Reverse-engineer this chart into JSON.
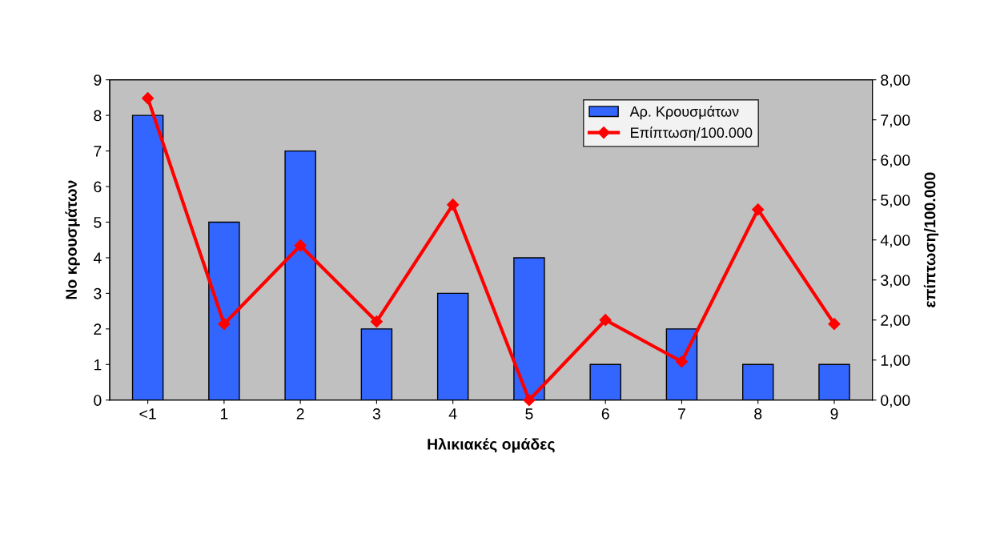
{
  "chart_data": {
    "type": "bar",
    "xlabel": "Ηλικιακές ομάδες",
    "ylabel": "Νο κρουσμάτων",
    "y2label": "επίπτωση/100.000",
    "categories": [
      "<1",
      "1",
      "2",
      "3",
      "4",
      "5",
      "6",
      "7",
      "8",
      "9"
    ],
    "series": [
      {
        "name": "Αρ. Κρουσμάτων",
        "color": "#3366ff",
        "values": [
          8,
          5,
          7,
          2,
          3,
          4,
          1,
          2,
          1,
          1
        ]
      },
      {
        "name": "Επίπτωση/100.000",
        "type": "line",
        "axis": "y2",
        "color": "#ff0000",
        "values": [
          7.54,
          1.9,
          3.86,
          1.96,
          4.88,
          0.0,
          2.0,
          0.96,
          4.76,
          1.9
        ]
      }
    ],
    "ylim": [
      0,
      9
    ],
    "yticks": [
      0,
      1,
      2,
      3,
      4,
      5,
      6,
      7,
      8,
      9
    ],
    "y2lim": [
      0,
      8
    ],
    "y2ticks": [
      {
        "value": 0,
        "label": "0,00"
      },
      {
        "value": 1,
        "label": "1,00"
      },
      {
        "value": 2,
        "label": "2,00"
      },
      {
        "value": 3,
        "label": "3,00"
      },
      {
        "value": 4,
        "label": "4,00"
      },
      {
        "value": 5,
        "label": "5,00"
      },
      {
        "value": 6,
        "label": "6,00"
      },
      {
        "value": 7,
        "label": "7,00"
      },
      {
        "value": 8,
        "label": "8,00"
      }
    ],
    "grid": false,
    "legend": "top right",
    "marker": "diamond",
    "line_style": "solid"
  }
}
